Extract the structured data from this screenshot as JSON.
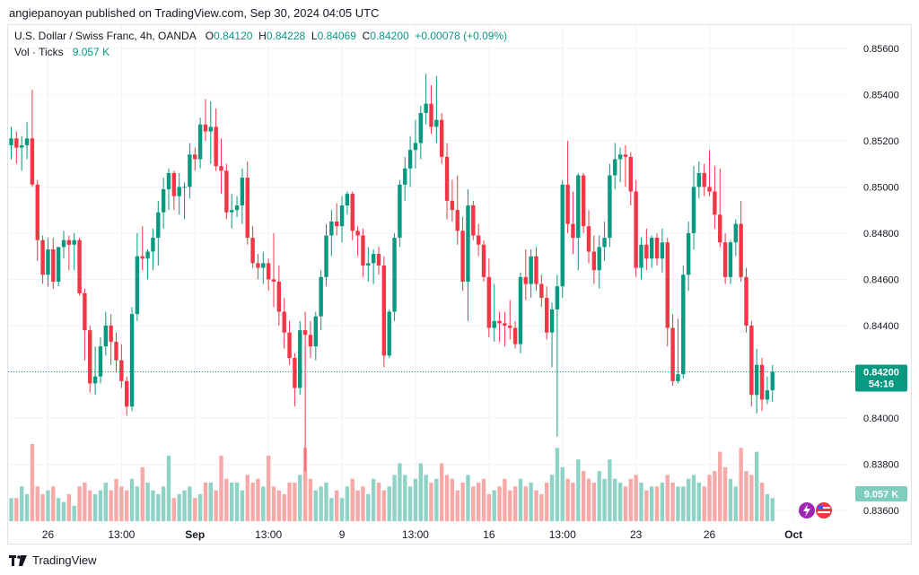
{
  "header": {
    "publisher_line": "angiepanoyan published on TradingView.com, Sep 30, 2024 04:05 UTC"
  },
  "legend": {
    "symbol": "U.S. Dollar / Swiss Franc, 4h, OANDA",
    "o_label": "O",
    "o_value": "0.84120",
    "h_label": "H",
    "h_value": "0.84228",
    "l_label": "L",
    "l_value": "0.84069",
    "c_label": "C",
    "c_value": "0.84200",
    "change": "+0.00078 (+0.09%)",
    "vol_label": "Vol · Ticks",
    "vol_value": "9.057 K"
  },
  "price_badge": {
    "price": "0.84200",
    "countdown": "54:16"
  },
  "volume_badge": {
    "value": "9.057 K"
  },
  "footer": {
    "brand": "TradingView"
  },
  "colors": {
    "up": "#089981",
    "down": "#f23645",
    "up_vol": "#8fd3c7",
    "down_vol": "#f7a9a7",
    "grid": "#f0f3fa",
    "price_line": "#089981"
  },
  "chart_data": {
    "type": "candlestick",
    "title": "U.S. Dollar / Swiss Franc, 4h, OANDA",
    "ylim": [
      0.8355,
      0.857
    ],
    "y_ticks": [
      "0.85600",
      "0.85400",
      "0.85200",
      "0.85000",
      "0.84800",
      "0.84600",
      "0.84400",
      "0.84200",
      "0.84000",
      "0.83800",
      "0.83600"
    ],
    "x_ticks": [
      "26",
      "13:00",
      "Sep",
      "13:00",
      "9",
      "13:00",
      "16",
      "13:00",
      "23",
      "26",
      "Oct"
    ],
    "x_tick_bars": [
      7,
      21,
      35,
      49,
      63,
      77,
      91,
      105,
      119,
      133,
      149
    ],
    "current_price": 0.842,
    "candles": [
      {
        "o": 0.8518,
        "h": 0.8526,
        "l": 0.8512,
        "c": 0.8521,
        "v": 0.3
      },
      {
        "o": 0.8521,
        "h": 0.8524,
        "l": 0.851,
        "c": 0.8517,
        "v": 0.3
      },
      {
        "o": 0.8517,
        "h": 0.8522,
        "l": 0.8507,
        "c": 0.8518,
        "v": 0.45
      },
      {
        "o": 0.8518,
        "h": 0.8528,
        "l": 0.8512,
        "c": 0.8521,
        "v": 0.35
      },
      {
        "o": 0.8521,
        "h": 0.8542,
        "l": 0.85,
        "c": 0.8501,
        "v": 1.0
      },
      {
        "o": 0.8501,
        "h": 0.8503,
        "l": 0.8468,
        "c": 0.8477,
        "v": 0.45
      },
      {
        "o": 0.8477,
        "h": 0.8479,
        "l": 0.8458,
        "c": 0.8462,
        "v": 0.35
      },
      {
        "o": 0.8462,
        "h": 0.8478,
        "l": 0.8457,
        "c": 0.8473,
        "v": 0.4
      },
      {
        "o": 0.8473,
        "h": 0.8478,
        "l": 0.8456,
        "c": 0.8459,
        "v": 0.45
      },
      {
        "o": 0.8459,
        "h": 0.8474,
        "l": 0.8457,
        "c": 0.8474,
        "v": 0.3
      },
      {
        "o": 0.8474,
        "h": 0.8481,
        "l": 0.8469,
        "c": 0.8477,
        "v": 0.25
      },
      {
        "o": 0.8477,
        "h": 0.8479,
        "l": 0.8464,
        "c": 0.8475,
        "v": 0.35
      },
      {
        "o": 0.8475,
        "h": 0.848,
        "l": 0.8464,
        "c": 0.8477,
        "v": 0.2
      },
      {
        "o": 0.8477,
        "h": 0.8478,
        "l": 0.8453,
        "c": 0.8454,
        "v": 0.45
      },
      {
        "o": 0.8454,
        "h": 0.8456,
        "l": 0.8425,
        "c": 0.8438,
        "v": 0.5
      },
      {
        "o": 0.8438,
        "h": 0.844,
        "l": 0.8411,
        "c": 0.8415,
        "v": 0.4
      },
      {
        "o": 0.8415,
        "h": 0.8431,
        "l": 0.841,
        "c": 0.8418,
        "v": 0.35
      },
      {
        "o": 0.8418,
        "h": 0.8435,
        "l": 0.8415,
        "c": 0.8431,
        "v": 0.4
      },
      {
        "o": 0.8431,
        "h": 0.8446,
        "l": 0.8427,
        "c": 0.844,
        "v": 0.5
      },
      {
        "o": 0.844,
        "h": 0.8445,
        "l": 0.8423,
        "c": 0.8433,
        "v": 0.4
      },
      {
        "o": 0.8433,
        "h": 0.8437,
        "l": 0.842,
        "c": 0.8425,
        "v": 0.55
      },
      {
        "o": 0.8425,
        "h": 0.8432,
        "l": 0.8413,
        "c": 0.8416,
        "v": 0.45
      },
      {
        "o": 0.8416,
        "h": 0.8418,
        "l": 0.8401,
        "c": 0.8405,
        "v": 0.4
      },
      {
        "o": 0.8405,
        "h": 0.8448,
        "l": 0.8403,
        "c": 0.8445,
        "v": 0.55
      },
      {
        "o": 0.8445,
        "h": 0.848,
        "l": 0.8442,
        "c": 0.847,
        "v": 0.45
      },
      {
        "o": 0.847,
        "h": 0.8483,
        "l": 0.8464,
        "c": 0.8469,
        "v": 0.7
      },
      {
        "o": 0.8469,
        "h": 0.8473,
        "l": 0.846,
        "c": 0.8472,
        "v": 0.5
      },
      {
        "o": 0.8472,
        "h": 0.8482,
        "l": 0.8464,
        "c": 0.8478,
        "v": 0.4
      },
      {
        "o": 0.8478,
        "h": 0.8494,
        "l": 0.8466,
        "c": 0.8489,
        "v": 0.35
      },
      {
        "o": 0.8489,
        "h": 0.8504,
        "l": 0.8482,
        "c": 0.8499,
        "v": 0.45
      },
      {
        "o": 0.8499,
        "h": 0.8508,
        "l": 0.849,
        "c": 0.8506,
        "v": 0.85
      },
      {
        "o": 0.8506,
        "h": 0.8507,
        "l": 0.849,
        "c": 0.8496,
        "v": 0.3
      },
      {
        "o": 0.8496,
        "h": 0.8506,
        "l": 0.8488,
        "c": 0.85,
        "v": 0.35
      },
      {
        "o": 0.85,
        "h": 0.8502,
        "l": 0.8486,
        "c": 0.85,
        "v": 0.4
      },
      {
        "o": 0.85,
        "h": 0.8519,
        "l": 0.8495,
        "c": 0.8514,
        "v": 0.45
      },
      {
        "o": 0.8514,
        "h": 0.8517,
        "l": 0.8507,
        "c": 0.8512,
        "v": 0.3
      },
      {
        "o": 0.8512,
        "h": 0.853,
        "l": 0.8508,
        "c": 0.8527,
        "v": 0.35
      },
      {
        "o": 0.8527,
        "h": 0.8538,
        "l": 0.852,
        "c": 0.8524,
        "v": 0.5
      },
      {
        "o": 0.8524,
        "h": 0.8537,
        "l": 0.851,
        "c": 0.8526,
        "v": 0.5
      },
      {
        "o": 0.8526,
        "h": 0.8534,
        "l": 0.8507,
        "c": 0.8509,
        "v": 0.4
      },
      {
        "o": 0.8509,
        "h": 0.8521,
        "l": 0.8497,
        "c": 0.8507,
        "v": 0.85
      },
      {
        "o": 0.8507,
        "h": 0.851,
        "l": 0.8486,
        "c": 0.8489,
        "v": 0.55
      },
      {
        "o": 0.8489,
        "h": 0.8497,
        "l": 0.8482,
        "c": 0.849,
        "v": 0.5
      },
      {
        "o": 0.849,
        "h": 0.8496,
        "l": 0.8487,
        "c": 0.8492,
        "v": 0.5
      },
      {
        "o": 0.8492,
        "h": 0.8508,
        "l": 0.8484,
        "c": 0.8504,
        "v": 0.4
      },
      {
        "o": 0.8504,
        "h": 0.8511,
        "l": 0.8475,
        "c": 0.8478,
        "v": 0.6
      },
      {
        "o": 0.8478,
        "h": 0.8483,
        "l": 0.8465,
        "c": 0.8467,
        "v": 0.5
      },
      {
        "o": 0.8467,
        "h": 0.8471,
        "l": 0.846,
        "c": 0.8465,
        "v": 0.55
      },
      {
        "o": 0.8465,
        "h": 0.8472,
        "l": 0.8458,
        "c": 0.8467,
        "v": 0.45
      },
      {
        "o": 0.8467,
        "h": 0.8469,
        "l": 0.8455,
        "c": 0.846,
        "v": 0.85
      },
      {
        "o": 0.846,
        "h": 0.848,
        "l": 0.8448,
        "c": 0.8459,
        "v": 0.45
      },
      {
        "o": 0.8459,
        "h": 0.8466,
        "l": 0.844,
        "c": 0.8446,
        "v": 0.4
      },
      {
        "o": 0.8446,
        "h": 0.8452,
        "l": 0.843,
        "c": 0.8437,
        "v": 0.35
      },
      {
        "o": 0.8437,
        "h": 0.8442,
        "l": 0.8423,
        "c": 0.8426,
        "v": 0.5
      },
      {
        "o": 0.8426,
        "h": 0.8428,
        "l": 0.8405,
        "c": 0.8413,
        "v": 0.5
      },
      {
        "o": 0.8413,
        "h": 0.8442,
        "l": 0.841,
        "c": 0.8438,
        "v": 0.6
      },
      {
        "o": 0.8438,
        "h": 0.8446,
        "l": 0.8377,
        "c": 0.8436,
        "v": 0.95
      },
      {
        "o": 0.8436,
        "h": 0.8442,
        "l": 0.8426,
        "c": 0.8431,
        "v": 0.55
      },
      {
        "o": 0.8431,
        "h": 0.8446,
        "l": 0.8425,
        "c": 0.8444,
        "v": 0.4
      },
      {
        "o": 0.8444,
        "h": 0.8464,
        "l": 0.8438,
        "c": 0.8461,
        "v": 0.45
      },
      {
        "o": 0.8461,
        "h": 0.8484,
        "l": 0.8457,
        "c": 0.8479,
        "v": 0.5
      },
      {
        "o": 0.8479,
        "h": 0.849,
        "l": 0.847,
        "c": 0.8485,
        "v": 0.3
      },
      {
        "o": 0.8485,
        "h": 0.8493,
        "l": 0.8479,
        "c": 0.8483,
        "v": 0.4
      },
      {
        "o": 0.8483,
        "h": 0.8496,
        "l": 0.8476,
        "c": 0.8492,
        "v": 0.3
      },
      {
        "o": 0.8492,
        "h": 0.8498,
        "l": 0.8488,
        "c": 0.8497,
        "v": 0.45
      },
      {
        "o": 0.8497,
        "h": 0.8498,
        "l": 0.8477,
        "c": 0.8481,
        "v": 0.55
      },
      {
        "o": 0.8481,
        "h": 0.8483,
        "l": 0.847,
        "c": 0.8479,
        "v": 0.4
      },
      {
        "o": 0.8479,
        "h": 0.8482,
        "l": 0.8461,
        "c": 0.8466,
        "v": 0.45
      },
      {
        "o": 0.8466,
        "h": 0.8474,
        "l": 0.8459,
        "c": 0.8467,
        "v": 0.35
      },
      {
        "o": 0.8467,
        "h": 0.8473,
        "l": 0.8458,
        "c": 0.8471,
        "v": 0.55
      },
      {
        "o": 0.8471,
        "h": 0.8474,
        "l": 0.8462,
        "c": 0.8466,
        "v": 0.5
      },
      {
        "o": 0.8466,
        "h": 0.847,
        "l": 0.8422,
        "c": 0.8427,
        "v": 0.4
      },
      {
        "o": 0.8427,
        "h": 0.8447,
        "l": 0.8426,
        "c": 0.8446,
        "v": 0.45
      },
      {
        "o": 0.8446,
        "h": 0.848,
        "l": 0.8442,
        "c": 0.8478,
        "v": 0.6
      },
      {
        "o": 0.8478,
        "h": 0.8503,
        "l": 0.8474,
        "c": 0.8501,
        "v": 0.75
      },
      {
        "o": 0.8501,
        "h": 0.8513,
        "l": 0.8494,
        "c": 0.8508,
        "v": 0.6
      },
      {
        "o": 0.8508,
        "h": 0.8522,
        "l": 0.85,
        "c": 0.8516,
        "v": 0.45
      },
      {
        "o": 0.8516,
        "h": 0.8529,
        "l": 0.8508,
        "c": 0.8519,
        "v": 0.55
      },
      {
        "o": 0.8519,
        "h": 0.8535,
        "l": 0.8512,
        "c": 0.8532,
        "v": 0.75
      },
      {
        "o": 0.8532,
        "h": 0.8549,
        "l": 0.8527,
        "c": 0.8536,
        "v": 0.6
      },
      {
        "o": 0.8536,
        "h": 0.8544,
        "l": 0.8523,
        "c": 0.8526,
        "v": 0.5
      },
      {
        "o": 0.8526,
        "h": 0.8548,
        "l": 0.8519,
        "c": 0.8529,
        "v": 0.55
      },
      {
        "o": 0.8529,
        "h": 0.8532,
        "l": 0.851,
        "c": 0.8513,
        "v": 0.75
      },
      {
        "o": 0.8513,
        "h": 0.8519,
        "l": 0.8486,
        "c": 0.8494,
        "v": 0.6
      },
      {
        "o": 0.8494,
        "h": 0.8503,
        "l": 0.8485,
        "c": 0.849,
        "v": 0.55
      },
      {
        "o": 0.849,
        "h": 0.8505,
        "l": 0.8475,
        "c": 0.8481,
        "v": 0.4
      },
      {
        "o": 0.8481,
        "h": 0.8487,
        "l": 0.8455,
        "c": 0.8459,
        "v": 0.5
      },
      {
        "o": 0.8459,
        "h": 0.8499,
        "l": 0.8442,
        "c": 0.8492,
        "v": 0.6
      },
      {
        "o": 0.8492,
        "h": 0.8494,
        "l": 0.8477,
        "c": 0.8479,
        "v": 0.45
      },
      {
        "o": 0.8479,
        "h": 0.8484,
        "l": 0.847,
        "c": 0.8475,
        "v": 0.5
      },
      {
        "o": 0.8475,
        "h": 0.8477,
        "l": 0.8459,
        "c": 0.8461,
        "v": 0.55
      },
      {
        "o": 0.8461,
        "h": 0.8469,
        "l": 0.8435,
        "c": 0.8439,
        "v": 0.35
      },
      {
        "o": 0.8439,
        "h": 0.8458,
        "l": 0.8433,
        "c": 0.8442,
        "v": 0.4
      },
      {
        "o": 0.8442,
        "h": 0.8446,
        "l": 0.8433,
        "c": 0.8441,
        "v": 0.45
      },
      {
        "o": 0.8441,
        "h": 0.8446,
        "l": 0.8431,
        "c": 0.844,
        "v": 0.55
      },
      {
        "o": 0.844,
        "h": 0.8451,
        "l": 0.8434,
        "c": 0.8439,
        "v": 0.4
      },
      {
        "o": 0.8439,
        "h": 0.8442,
        "l": 0.843,
        "c": 0.8432,
        "v": 0.45
      },
      {
        "o": 0.8432,
        "h": 0.8463,
        "l": 0.8428,
        "c": 0.8461,
        "v": 0.55
      },
      {
        "o": 0.8461,
        "h": 0.8473,
        "l": 0.8451,
        "c": 0.8458,
        "v": 0.45
      },
      {
        "o": 0.8458,
        "h": 0.8473,
        "l": 0.8452,
        "c": 0.847,
        "v": 0.5
      },
      {
        "o": 0.847,
        "h": 0.8474,
        "l": 0.8455,
        "c": 0.8458,
        "v": 0.4
      },
      {
        "o": 0.8458,
        "h": 0.8462,
        "l": 0.8448,
        "c": 0.8452,
        "v": 0.35
      },
      {
        "o": 0.8452,
        "h": 0.8457,
        "l": 0.8434,
        "c": 0.8437,
        "v": 0.5
      },
      {
        "o": 0.8437,
        "h": 0.845,
        "l": 0.8422,
        "c": 0.8447,
        "v": 0.6
      },
      {
        "o": 0.8447,
        "h": 0.8462,
        "l": 0.8392,
        "c": 0.8457,
        "v": 0.95
      },
      {
        "o": 0.8457,
        "h": 0.8503,
        "l": 0.8452,
        "c": 0.8501,
        "v": 0.7
      },
      {
        "o": 0.8501,
        "h": 0.852,
        "l": 0.848,
        "c": 0.8484,
        "v": 0.55
      },
      {
        "o": 0.8484,
        "h": 0.8498,
        "l": 0.8471,
        "c": 0.8478,
        "v": 0.5
      },
      {
        "o": 0.8478,
        "h": 0.8506,
        "l": 0.8464,
        "c": 0.8505,
        "v": 0.8
      },
      {
        "o": 0.8505,
        "h": 0.8506,
        "l": 0.848,
        "c": 0.8483,
        "v": 0.65
      },
      {
        "o": 0.8483,
        "h": 0.849,
        "l": 0.8467,
        "c": 0.8472,
        "v": 0.55
      },
      {
        "o": 0.8472,
        "h": 0.8479,
        "l": 0.8458,
        "c": 0.8464,
        "v": 0.5
      },
      {
        "o": 0.8464,
        "h": 0.8479,
        "l": 0.8456,
        "c": 0.8474,
        "v": 0.65
      },
      {
        "o": 0.8474,
        "h": 0.8485,
        "l": 0.8468,
        "c": 0.8478,
        "v": 0.55
      },
      {
        "o": 0.8478,
        "h": 0.851,
        "l": 0.8474,
        "c": 0.8505,
        "v": 0.8
      },
      {
        "o": 0.8505,
        "h": 0.8519,
        "l": 0.8499,
        "c": 0.8512,
        "v": 0.55
      },
      {
        "o": 0.8512,
        "h": 0.8517,
        "l": 0.8502,
        "c": 0.8514,
        "v": 0.5
      },
      {
        "o": 0.8514,
        "h": 0.8518,
        "l": 0.85,
        "c": 0.8513,
        "v": 0.45
      },
      {
        "o": 0.8513,
        "h": 0.8515,
        "l": 0.8492,
        "c": 0.8498,
        "v": 0.55
      },
      {
        "o": 0.8498,
        "h": 0.8503,
        "l": 0.8461,
        "c": 0.8465,
        "v": 0.6
      },
      {
        "o": 0.8465,
        "h": 0.8478,
        "l": 0.846,
        "c": 0.8475,
        "v": 0.5
      },
      {
        "o": 0.8475,
        "h": 0.8482,
        "l": 0.8464,
        "c": 0.8469,
        "v": 0.4
      },
      {
        "o": 0.8469,
        "h": 0.8479,
        "l": 0.8465,
        "c": 0.8478,
        "v": 0.45
      },
      {
        "o": 0.8478,
        "h": 0.848,
        "l": 0.8466,
        "c": 0.8469,
        "v": 0.45
      },
      {
        "o": 0.8469,
        "h": 0.8482,
        "l": 0.8463,
        "c": 0.8476,
        "v": 0.5
      },
      {
        "o": 0.8476,
        "h": 0.8478,
        "l": 0.8431,
        "c": 0.8439,
        "v": 0.6
      },
      {
        "o": 0.8439,
        "h": 0.8445,
        "l": 0.8414,
        "c": 0.8416,
        "v": 0.5
      },
      {
        "o": 0.8416,
        "h": 0.8443,
        "l": 0.8415,
        "c": 0.8419,
        "v": 0.45
      },
      {
        "o": 0.8419,
        "h": 0.8466,
        "l": 0.8417,
        "c": 0.8462,
        "v": 0.45
      },
      {
        "o": 0.8462,
        "h": 0.8485,
        "l": 0.8455,
        "c": 0.848,
        "v": 0.55
      },
      {
        "o": 0.848,
        "h": 0.8509,
        "l": 0.8473,
        "c": 0.85,
        "v": 0.6
      },
      {
        "o": 0.85,
        "h": 0.8511,
        "l": 0.8495,
        "c": 0.8506,
        "v": 0.5
      },
      {
        "o": 0.8506,
        "h": 0.851,
        "l": 0.8496,
        "c": 0.85,
        "v": 0.45
      },
      {
        "o": 0.85,
        "h": 0.8516,
        "l": 0.8496,
        "c": 0.8498,
        "v": 0.6
      },
      {
        "o": 0.8498,
        "h": 0.8509,
        "l": 0.8482,
        "c": 0.8488,
        "v": 0.65
      },
      {
        "o": 0.8488,
        "h": 0.8508,
        "l": 0.8474,
        "c": 0.8476,
        "v": 0.9
      },
      {
        "o": 0.8476,
        "h": 0.848,
        "l": 0.8458,
        "c": 0.8461,
        "v": 0.7
      },
      {
        "o": 0.8461,
        "h": 0.8477,
        "l": 0.8458,
        "c": 0.8476,
        "v": 0.55
      },
      {
        "o": 0.8476,
        "h": 0.8486,
        "l": 0.847,
        "c": 0.8484,
        "v": 0.45
      },
      {
        "o": 0.8484,
        "h": 0.8494,
        "l": 0.8459,
        "c": 0.8461,
        "v": 0.95
      },
      {
        "o": 0.8461,
        "h": 0.8465,
        "l": 0.8437,
        "c": 0.844,
        "v": 0.65
      },
      {
        "o": 0.844,
        "h": 0.8442,
        "l": 0.8405,
        "c": 0.841,
        "v": 0.6
      },
      {
        "o": 0.841,
        "h": 0.843,
        "l": 0.8402,
        "c": 0.8423,
        "v": 0.9
      },
      {
        "o": 0.8423,
        "h": 0.8426,
        "l": 0.8403,
        "c": 0.8408,
        "v": 0.5
      },
      {
        "o": 0.8408,
        "h": 0.8418,
        "l": 0.8406,
        "c": 0.8412,
        "v": 0.35
      },
      {
        "o": 0.8412,
        "h": 0.8423,
        "l": 0.8407,
        "c": 0.842,
        "v": 0.3
      }
    ]
  }
}
